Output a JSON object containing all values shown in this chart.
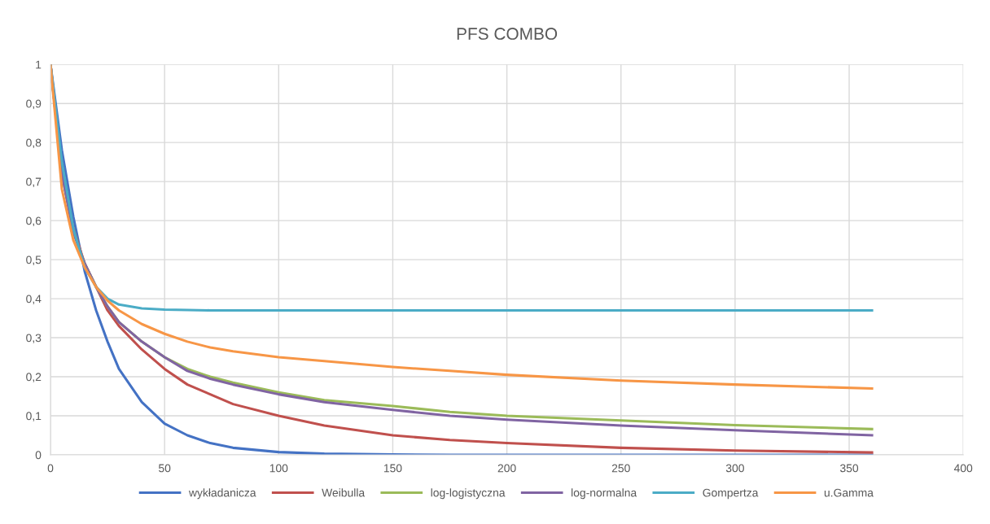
{
  "chart_data": {
    "type": "line",
    "title": "PFS COMBO",
    "x": [
      0,
      5,
      10,
      15,
      20,
      25,
      30,
      40,
      50,
      60,
      70,
      80,
      100,
      120,
      150,
      175,
      200,
      250,
      300,
      360
    ],
    "series": [
      {
        "name": "wykładanicza",
        "color": "#4472c4",
        "values": [
          1,
          0.78,
          0.61,
          0.47,
          0.37,
          0.29,
          0.22,
          0.135,
          0.08,
          0.05,
          0.03,
          0.018,
          0.007,
          0.003,
          0.001,
          0,
          0,
          0,
          0,
          0
        ]
      },
      {
        "name": "Weibulla",
        "color": "#c0504d",
        "values": [
          1,
          0.72,
          0.58,
          0.49,
          0.43,
          0.37,
          0.33,
          0.27,
          0.22,
          0.18,
          0.155,
          0.13,
          0.1,
          0.075,
          0.05,
          0.038,
          0.03,
          0.018,
          0.011,
          0.006
        ]
      },
      {
        "name": "log-logistyczna",
        "color": "#9bbb59",
        "values": [
          1,
          0.72,
          0.57,
          0.49,
          0.43,
          0.38,
          0.34,
          0.29,
          0.25,
          0.22,
          0.2,
          0.185,
          0.16,
          0.14,
          0.125,
          0.11,
          0.1,
          0.088,
          0.076,
          0.066
        ]
      },
      {
        "name": "log-normalna",
        "color": "#8064a2",
        "values": [
          1,
          0.72,
          0.57,
          0.49,
          0.43,
          0.38,
          0.34,
          0.29,
          0.25,
          0.215,
          0.195,
          0.18,
          0.155,
          0.135,
          0.115,
          0.1,
          0.09,
          0.075,
          0.063,
          0.05
        ]
      },
      {
        "name": "Gompertza",
        "color": "#4bacc6",
        "values": [
          1,
          0.75,
          0.58,
          0.48,
          0.43,
          0.4,
          0.385,
          0.375,
          0.372,
          0.371,
          0.37,
          0.37,
          0.37,
          0.37,
          0.37,
          0.37,
          0.37,
          0.37,
          0.37,
          0.37
        ]
      },
      {
        "name": "u.Gamma",
        "color": "#f79646",
        "values": [
          1,
          0.68,
          0.55,
          0.48,
          0.43,
          0.395,
          0.37,
          0.335,
          0.31,
          0.29,
          0.275,
          0.265,
          0.25,
          0.24,
          0.225,
          0.215,
          0.205,
          0.19,
          0.18,
          0.17
        ]
      }
    ],
    "xlim": [
      0,
      400
    ],
    "xticks": [
      0,
      50,
      100,
      150,
      200,
      250,
      300,
      350,
      400
    ],
    "ylim": [
      0,
      1
    ],
    "yticks": [
      0,
      {
        "value": 0.1,
        "label": "0,1"
      },
      {
        "value": 0.2,
        "label": "0,2"
      },
      {
        "value": 0.3,
        "label": "0,3"
      },
      {
        "value": 0.4,
        "label": "0,4"
      },
      {
        "value": 0.5,
        "label": "0,5"
      },
      {
        "value": 0.6,
        "label": "0,6"
      },
      {
        "value": 0.7,
        "label": "0,7"
      },
      {
        "value": 0.8,
        "label": "0,8"
      },
      {
        "value": 0.9,
        "label": "0,9"
      },
      1
    ],
    "grid": true,
    "legend": "bottom",
    "marker": "none",
    "line_style": "solid"
  }
}
